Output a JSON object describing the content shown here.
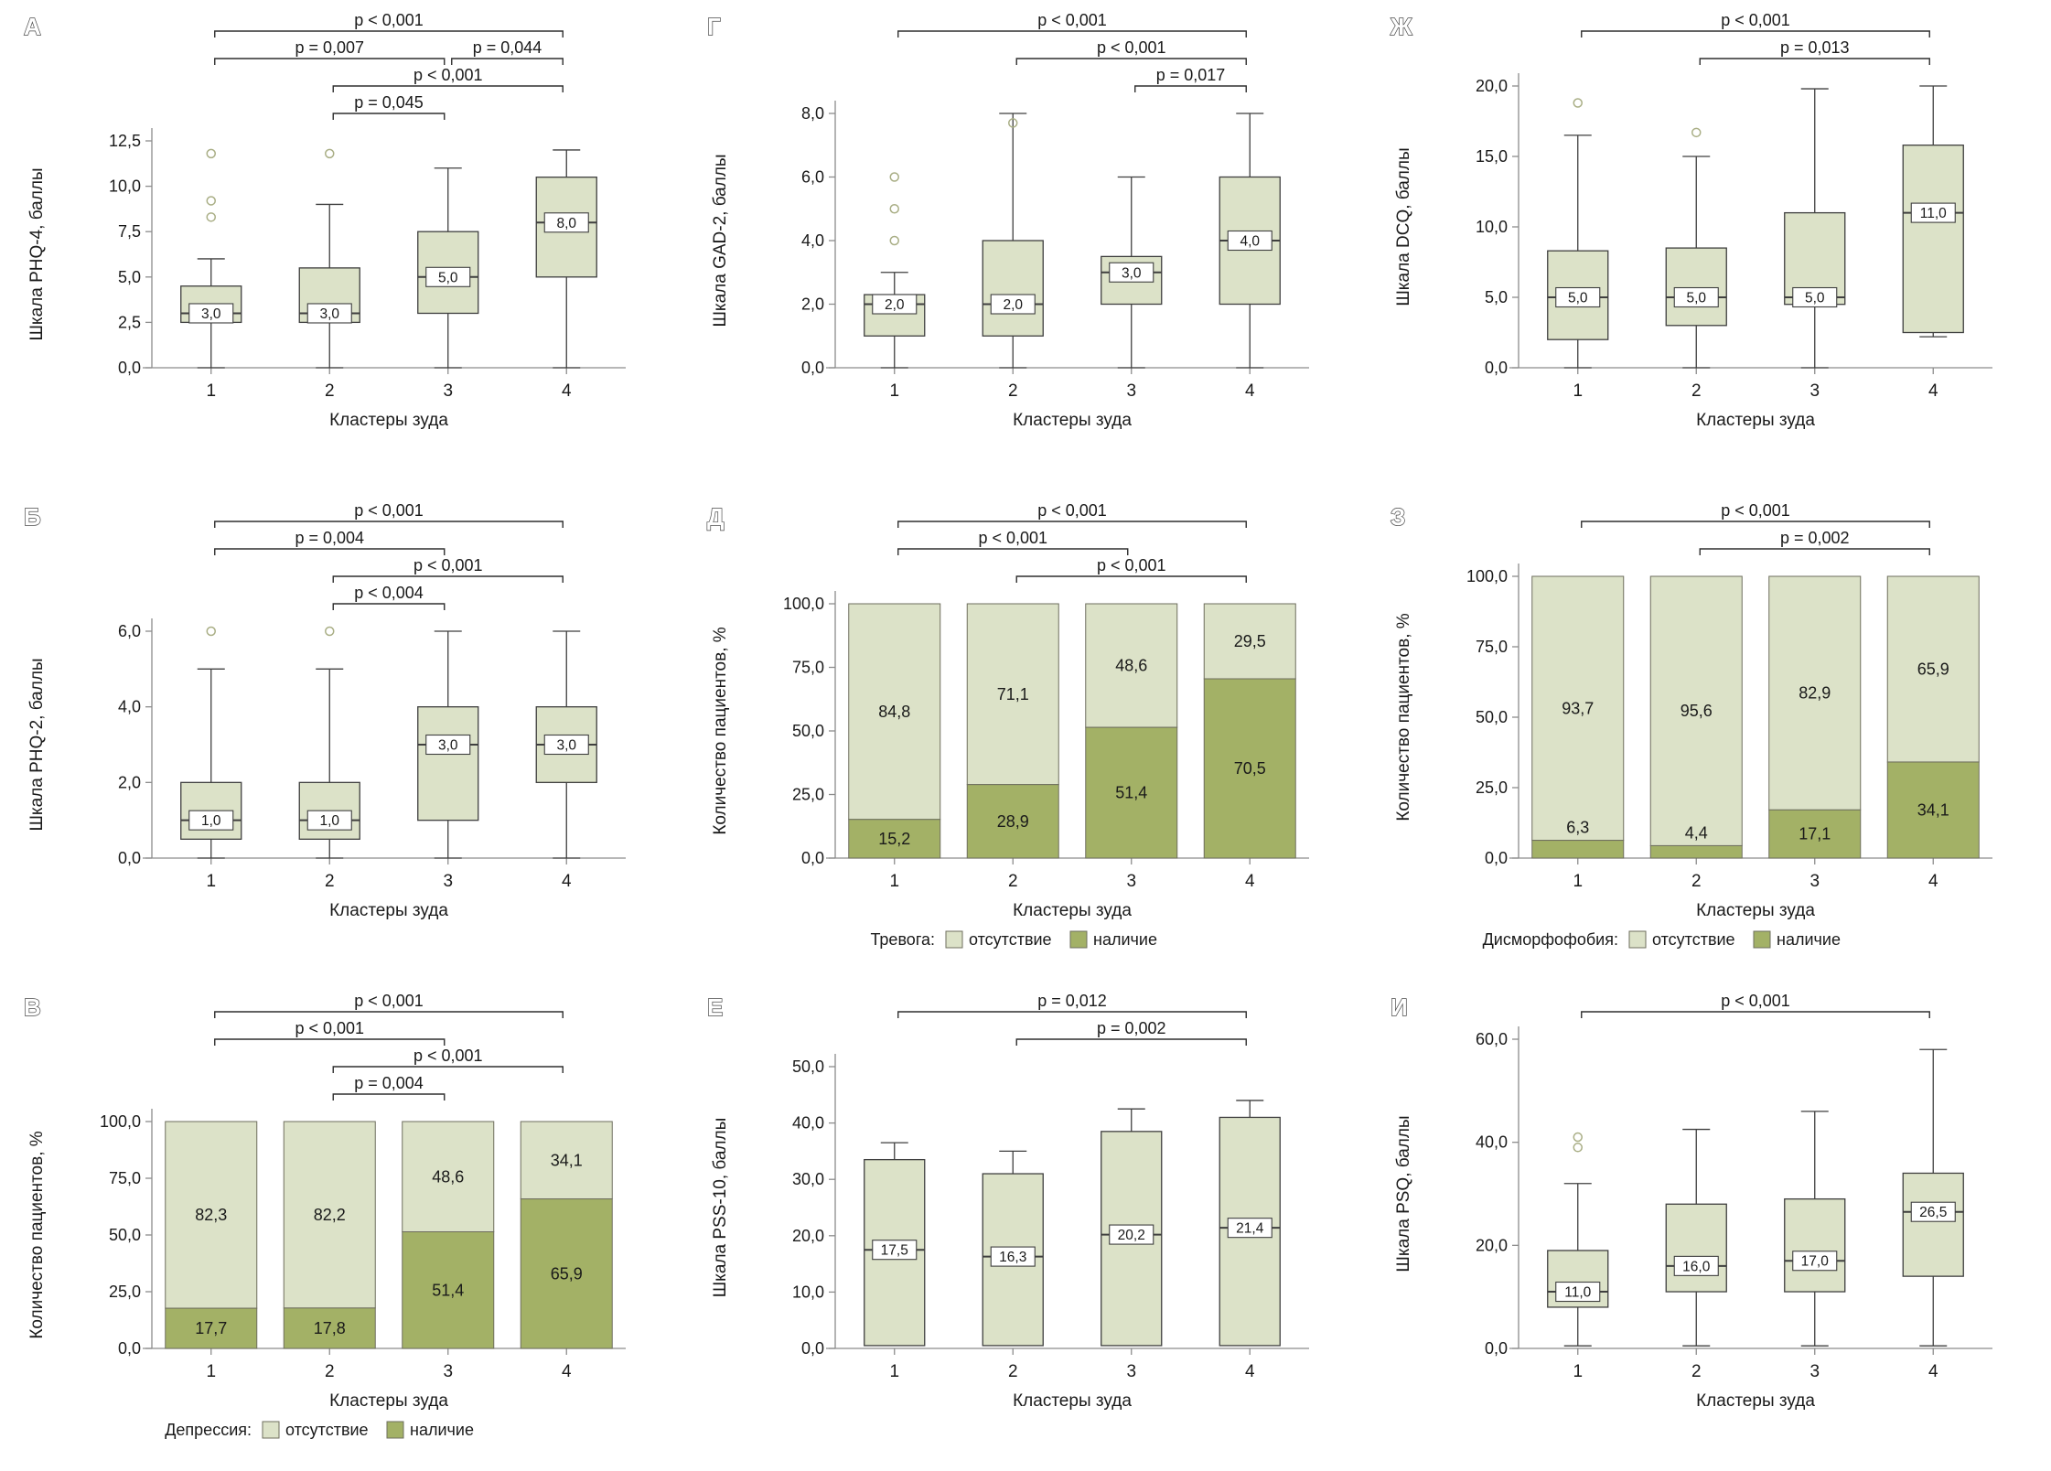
{
  "page": {
    "background": "#ffffff"
  },
  "colors": {
    "box_fill": "#dce2c8",
    "bar_light": "#dce2c8",
    "bar_dark": "#a3b166",
    "box_stroke": "#3f3f3f",
    "bar_stroke": "#6e6e5e",
    "axis": "#8c8c8c",
    "bracket": "#2f2f2f",
    "outlier": "#a9ae85",
    "text": "#1a1a1a"
  },
  "chart_data": [
    {
      "panel_letter": "А",
      "type": "box",
      "ylabel": "Шкала PHQ-4, баллы",
      "xlabel": "Кластеры зуда",
      "categories": [
        "1",
        "2",
        "3",
        "4"
      ],
      "ylim": [
        0,
        12.5
      ],
      "yticks": [
        {
          "v": 0,
          "label": "0,0"
        },
        {
          "v": 2.5,
          "label": "2,5"
        },
        {
          "v": 5,
          "label": "5,0"
        },
        {
          "v": 7.5,
          "label": "7,5"
        },
        {
          "v": 10,
          "label": "10,0"
        },
        {
          "v": 12.5,
          "label": "12,5"
        }
      ],
      "boxes": [
        {
          "low": 0,
          "q1": 2.5,
          "median": 3,
          "q3": 4.5,
          "high": 6,
          "outliers": [
            8.3,
            9.2,
            11.8
          ],
          "median_label": "3,0"
        },
        {
          "low": 0,
          "q1": 2.5,
          "median": 3,
          "q3": 5.5,
          "high": 9,
          "outliers": [
            11.8
          ],
          "median_label": "3,0"
        },
        {
          "low": 0,
          "q1": 3,
          "median": 5,
          "q3": 7.5,
          "high": 11,
          "outliers": [],
          "median_label": "5,0"
        },
        {
          "low": 0,
          "q1": 5,
          "median": 8,
          "q3": 10.5,
          "high": 12,
          "outliers": [],
          "median_label": "8,0"
        }
      ],
      "significance": [
        {
          "from": 1,
          "to": 4,
          "row": 0,
          "label": "p < 0,001"
        },
        {
          "from": 1,
          "to": 3,
          "row": 1,
          "label": "p = 0,007"
        },
        {
          "from": 3,
          "to": 4,
          "row": 1,
          "label": "p = 0,044"
        },
        {
          "from": 2,
          "to": 4,
          "row": 2,
          "label": "p < 0,001"
        },
        {
          "from": 2,
          "to": 3,
          "row": 3,
          "label": "p = 0,045"
        }
      ]
    },
    {
      "panel_letter": "Г",
      "type": "box",
      "ylabel": "Шкала GAD-2, баллы",
      "xlabel": "Кластеры зуда",
      "categories": [
        "1",
        "2",
        "3",
        "4"
      ],
      "ylim": [
        0,
        8
      ],
      "yticks": [
        {
          "v": 0,
          "label": "0,0"
        },
        {
          "v": 2,
          "label": "2,0"
        },
        {
          "v": 4,
          "label": "4,0"
        },
        {
          "v": 6,
          "label": "6,0"
        },
        {
          "v": 8,
          "label": "8,0"
        }
      ],
      "boxes": [
        {
          "low": 0,
          "q1": 1,
          "median": 2,
          "q3": 2.3,
          "high": 3,
          "outliers": [
            4,
            5,
            6
          ],
          "median_label": "2,0"
        },
        {
          "low": 0,
          "q1": 1,
          "median": 2,
          "q3": 4,
          "high": 8,
          "outliers": [
            7.7
          ],
          "median_label": "2,0"
        },
        {
          "low": 0,
          "q1": 2,
          "median": 3,
          "q3": 3.5,
          "high": 6,
          "outliers": [],
          "median_label": "3,0"
        },
        {
          "low": 0,
          "q1": 2,
          "median": 4,
          "q3": 6,
          "high": 8,
          "outliers": [],
          "median_label": "4,0"
        }
      ],
      "significance": [
        {
          "from": 1,
          "to": 4,
          "row": 0,
          "label": "p < 0,001"
        },
        {
          "from": 2,
          "to": 4,
          "row": 1,
          "label": "p < 0,001"
        },
        {
          "from": 3,
          "to": 4,
          "row": 2,
          "label": "p = 0,017"
        }
      ]
    },
    {
      "panel_letter": "Ж",
      "type": "box",
      "ylabel": "Шкала DCQ, баллы",
      "xlabel": "Кластеры зуда",
      "categories": [
        "1",
        "2",
        "3",
        "4"
      ],
      "ylim": [
        0,
        20
      ],
      "yticks": [
        {
          "v": 0,
          "label": "0,0"
        },
        {
          "v": 5,
          "label": "5,0"
        },
        {
          "v": 10,
          "label": "10,0"
        },
        {
          "v": 15,
          "label": "15,0"
        },
        {
          "v": 20,
          "label": "20,0"
        }
      ],
      "boxes": [
        {
          "low": 0,
          "q1": 2,
          "median": 5,
          "q3": 8.3,
          "high": 16.5,
          "outliers": [
            18.8
          ],
          "median_label": "5,0"
        },
        {
          "low": 0,
          "q1": 3,
          "median": 5,
          "q3": 8.5,
          "high": 15,
          "outliers": [
            16.7
          ],
          "median_label": "5,0"
        },
        {
          "low": 0,
          "q1": 4.5,
          "median": 5,
          "q3": 11,
          "high": 19.8,
          "outliers": [],
          "median_label": "5,0"
        },
        {
          "low": 2.2,
          "q1": 2.5,
          "median": 11,
          "q3": 15.8,
          "high": 20,
          "outliers": [],
          "median_label": "11,0"
        }
      ],
      "significance": [
        {
          "from": 1,
          "to": 4,
          "row": 0,
          "label": "p < 0,001"
        },
        {
          "from": 2,
          "to": 4,
          "row": 1,
          "label": "p = 0,013"
        }
      ]
    },
    {
      "panel_letter": "Б",
      "type": "box",
      "ylabel": "Шкала PHQ-2, баллы",
      "xlabel": "Кластеры зуда",
      "categories": [
        "1",
        "2",
        "3",
        "4"
      ],
      "ylim": [
        0,
        6
      ],
      "yticks": [
        {
          "v": 0,
          "label": "0,0"
        },
        {
          "v": 2,
          "label": "2,0"
        },
        {
          "v": 4,
          "label": "4,0"
        },
        {
          "v": 6,
          "label": "6,0"
        }
      ],
      "boxes": [
        {
          "low": 0,
          "q1": 0.5,
          "median": 1,
          "q3": 2,
          "high": 5,
          "outliers": [
            6
          ],
          "median_label": "1,0"
        },
        {
          "low": 0,
          "q1": 0.5,
          "median": 1,
          "q3": 2,
          "high": 5,
          "outliers": [
            6
          ],
          "median_label": "1,0"
        },
        {
          "low": 0,
          "q1": 1,
          "median": 3,
          "q3": 4,
          "high": 6,
          "outliers": [],
          "median_label": "3,0"
        },
        {
          "low": 0,
          "q1": 2,
          "median": 3,
          "q3": 4,
          "high": 6,
          "outliers": [],
          "median_label": "3,0"
        }
      ],
      "significance": [
        {
          "from": 1,
          "to": 4,
          "row": 0,
          "label": "p < 0,001"
        },
        {
          "from": 1,
          "to": 3,
          "row": 1,
          "label": "p = 0,004"
        },
        {
          "from": 2,
          "to": 4,
          "row": 2,
          "label": "p < 0,001"
        },
        {
          "from": 2,
          "to": 3,
          "row": 3,
          "label": "p < 0,004"
        }
      ]
    },
    {
      "panel_letter": "Д",
      "type": "stacked_bar",
      "ylabel": "Количество пациентов, %",
      "xlabel": "Кластеры зуда",
      "categories": [
        "1",
        "2",
        "3",
        "4"
      ],
      "ylim": [
        0,
        100
      ],
      "yticks": [
        {
          "v": 0,
          "label": "0,0"
        },
        {
          "v": 25,
          "label": "25,0"
        },
        {
          "v": 50,
          "label": "50,0"
        },
        {
          "v": 75,
          "label": "75,0"
        },
        {
          "v": 100,
          "label": "100,0"
        }
      ],
      "bars": [
        {
          "values": {
            "absent": 84.8,
            "present": 15.2
          },
          "labels": {
            "absent": "84,8",
            "present": "15,2"
          }
        },
        {
          "values": {
            "absent": 71.1,
            "present": 28.9
          },
          "labels": {
            "absent": "71,1",
            "present": "28,9"
          }
        },
        {
          "values": {
            "absent": 48.6,
            "present": 51.4
          },
          "labels": {
            "absent": "48,6",
            "present": "51,4"
          }
        },
        {
          "values": {
            "absent": 29.5,
            "present": 70.5
          },
          "labels": {
            "absent": "29,5",
            "present": "70,5"
          }
        }
      ],
      "legend": {
        "title": "Тревога:",
        "items": [
          {
            "label": "отсутствие"
          },
          {
            "label": "наличие"
          }
        ]
      },
      "significance": [
        {
          "from": 1,
          "to": 4,
          "row": 0,
          "label": "p < 0,001"
        },
        {
          "from": 1,
          "to": 3,
          "row": 1,
          "label": "p < 0,001"
        },
        {
          "from": 2,
          "to": 4,
          "row": 2,
          "label": "p < 0,001"
        }
      ]
    },
    {
      "panel_letter": "З",
      "type": "stacked_bar",
      "ylabel": "Количество пациентов, %",
      "xlabel": "Кластеры зуда",
      "categories": [
        "1",
        "2",
        "3",
        "4"
      ],
      "ylim": [
        0,
        100
      ],
      "yticks": [
        {
          "v": 0,
          "label": "0,0"
        },
        {
          "v": 25,
          "label": "25,0"
        },
        {
          "v": 50,
          "label": "50,0"
        },
        {
          "v": 75,
          "label": "75,0"
        },
        {
          "v": 100,
          "label": "100,0"
        }
      ],
      "bars": [
        {
          "values": {
            "absent": 93.7,
            "present": 6.3
          },
          "labels": {
            "absent": "93,7",
            "present": "6,3"
          }
        },
        {
          "values": {
            "absent": 95.6,
            "present": 4.4
          },
          "labels": {
            "absent": "95,6",
            "present": "4,4"
          }
        },
        {
          "values": {
            "absent": 82.9,
            "present": 17.1
          },
          "labels": {
            "absent": "82,9",
            "present": "17,1"
          }
        },
        {
          "values": {
            "absent": 65.9,
            "present": 34.1
          },
          "labels": {
            "absent": "65,9",
            "present": "34,1"
          }
        }
      ],
      "legend": {
        "title": "Дисморфофобия:",
        "items": [
          {
            "label": "отсутствие"
          },
          {
            "label": "наличие"
          }
        ]
      },
      "significance": [
        {
          "from": 1,
          "to": 4,
          "row": 0,
          "label": "p < 0,001"
        },
        {
          "from": 2,
          "to": 4,
          "row": 1,
          "label": "p = 0,002"
        }
      ]
    },
    {
      "panel_letter": "В",
      "type": "stacked_bar",
      "ylabel": "Количество пациентов, %",
      "xlabel": "Кластеры зуда",
      "categories": [
        "1",
        "2",
        "3",
        "4"
      ],
      "ylim": [
        0,
        100
      ],
      "yticks": [
        {
          "v": 0,
          "label": "0,0"
        },
        {
          "v": 25,
          "label": "25,0"
        },
        {
          "v": 50,
          "label": "50,0"
        },
        {
          "v": 75,
          "label": "75,0"
        },
        {
          "v": 100,
          "label": "100,0"
        }
      ],
      "bars": [
        {
          "values": {
            "absent": 82.3,
            "present": 17.7
          },
          "labels": {
            "absent": "82,3",
            "present": "17,7"
          }
        },
        {
          "values": {
            "absent": 82.2,
            "present": 17.8
          },
          "labels": {
            "absent": "82,2",
            "present": "17,8"
          }
        },
        {
          "values": {
            "absent": 48.6,
            "present": 51.4
          },
          "labels": {
            "absent": "48,6",
            "present": "51,4"
          }
        },
        {
          "values": {
            "absent": 34.1,
            "present": 65.9
          },
          "labels": {
            "absent": "34,1",
            "present": "65,9"
          }
        }
      ],
      "legend": {
        "title": "Депрессия:",
        "items": [
          {
            "label": "отсутствие"
          },
          {
            "label": "наличие"
          }
        ]
      },
      "significance": [
        {
          "from": 1,
          "to": 4,
          "row": 0,
          "label": "p < 0,001"
        },
        {
          "from": 1,
          "to": 3,
          "row": 1,
          "label": "p < 0,001"
        },
        {
          "from": 2,
          "to": 4,
          "row": 2,
          "label": "p < 0,001"
        },
        {
          "from": 2,
          "to": 3,
          "row": 3,
          "label": "p = 0,004"
        }
      ]
    },
    {
      "panel_letter": "Е",
      "type": "box",
      "ylabel": "Шкала PSS-10, баллы",
      "xlabel": "Кластеры зуда",
      "categories": [
        "1",
        "2",
        "3",
        "4"
      ],
      "ylim": [
        0,
        50
      ],
      "yticks": [
        {
          "v": 0,
          "label": "0,0"
        },
        {
          "v": 10,
          "label": "10,0"
        },
        {
          "v": 20,
          "label": "20,0"
        },
        {
          "v": 30,
          "label": "30,0"
        },
        {
          "v": 40,
          "label": "40,0"
        },
        {
          "v": 50,
          "label": "50,0"
        }
      ],
      "boxes": [
        {
          "low": 0.5,
          "q1": 0.5,
          "median": 17.5,
          "q3": 33.5,
          "high": 36.5,
          "outliers": [],
          "median_label": "17,5"
        },
        {
          "low": 0.5,
          "q1": 0.5,
          "median": 16.3,
          "q3": 31,
          "high": 35,
          "outliers": [],
          "median_label": "16,3"
        },
        {
          "low": 0.5,
          "q1": 0.5,
          "median": 20.2,
          "q3": 38.5,
          "high": 42.5,
          "outliers": [],
          "median_label": "20,2"
        },
        {
          "low": 0.5,
          "q1": 0.5,
          "median": 21.4,
          "q3": 41,
          "high": 44,
          "outliers": [],
          "median_label": "21,4"
        }
      ],
      "significance": [
        {
          "from": 1,
          "to": 4,
          "row": 0,
          "label": "p = 0,012"
        },
        {
          "from": 2,
          "to": 4,
          "row": 1,
          "label": "p = 0,002"
        }
      ]
    },
    {
      "panel_letter": "И",
      "type": "box",
      "ylabel": "Шкала PSQ, баллы",
      "xlabel": "Кластеры зуда",
      "categories": [
        "1",
        "2",
        "3",
        "4"
      ],
      "ylim": [
        0,
        60
      ],
      "yticks": [
        {
          "v": 0,
          "label": "0,0"
        },
        {
          "v": 20,
          "label": "20,0"
        },
        {
          "v": 40,
          "label": "40,0"
        },
        {
          "v": 60,
          "label": "60,0"
        }
      ],
      "boxes": [
        {
          "low": 0.5,
          "q1": 8,
          "median": 11,
          "q3": 19,
          "high": 32,
          "outliers": [
            39,
            41
          ],
          "median_label": "11,0"
        },
        {
          "low": 0.5,
          "q1": 11,
          "median": 16,
          "q3": 28,
          "high": 42.5,
          "outliers": [],
          "median_label": "16,0"
        },
        {
          "low": 0.5,
          "q1": 11,
          "median": 17,
          "q3": 29,
          "high": 46,
          "outliers": [],
          "median_label": "17,0"
        },
        {
          "low": 0.5,
          "q1": 14,
          "median": 26.5,
          "q3": 34,
          "high": 58,
          "outliers": [],
          "median_label": "26,5"
        }
      ],
      "significance": [
        {
          "from": 1,
          "to": 4,
          "row": 0,
          "label": "p < 0,001"
        }
      ]
    }
  ]
}
